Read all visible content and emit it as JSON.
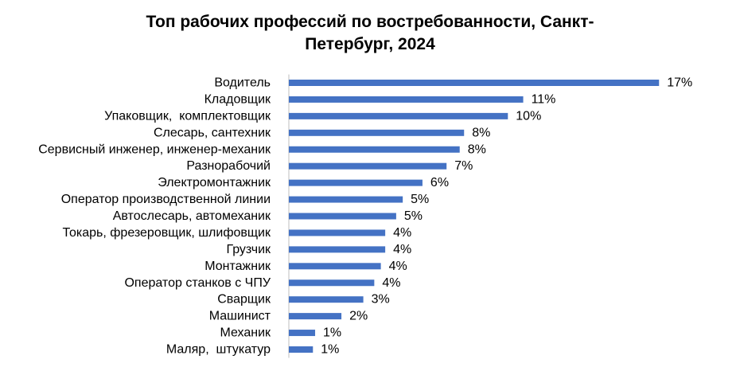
{
  "chart_data": {
    "type": "bar",
    "orientation": "horizontal",
    "title_lines": [
      "Топ рабочих профессий по востребованности, Санкт-",
      "Петербург, 2024"
    ],
    "title": "Топ рабочих профессий по востребованности, Санкт-Петербург, 2024",
    "categories": [
      "Водитель",
      "Кладовщик",
      "Упаковщик,  комплектовщик",
      "Слесарь, сантехник",
      "Сервисный инженер, инженер-механик",
      "Разнорабочий",
      "Электромонтажник",
      "Оператор производственной линии",
      "Автослесарь, автомеханик",
      "Токарь, фрезеровщик, шлифовщик",
      "Грузчик",
      "Монтажник",
      "Оператор станков с ЧПУ",
      "Сварщик",
      "Машинист",
      "Механик",
      "Маляр,  штукатур"
    ],
    "values": [
      16.9,
      10.7,
      10.0,
      8.0,
      7.8,
      7.2,
      6.1,
      5.2,
      4.9,
      4.4,
      4.4,
      4.2,
      3.9,
      3.4,
      2.4,
      1.2,
      1.1
    ],
    "value_labels": [
      "17%",
      "11%",
      "10%",
      "8%",
      "8%",
      "7%",
      "6%",
      "5%",
      "5%",
      "4%",
      "4%",
      "4%",
      "4%",
      "3%",
      "2%",
      "1%",
      "1%"
    ],
    "unit": "%",
    "xlim": [
      0,
      17
    ],
    "xlabel": "",
    "ylabel": "",
    "grid": false,
    "legend": "none",
    "bar_color": "#4472C4",
    "axis_color": "#BFBFBF"
  }
}
